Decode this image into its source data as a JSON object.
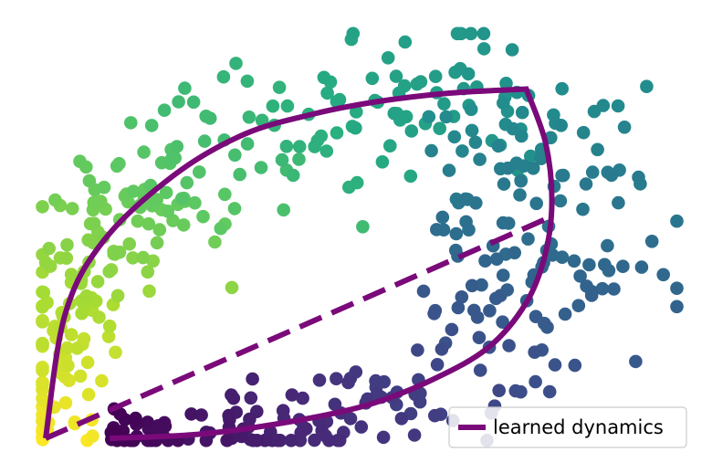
{
  "chart_data": {
    "type": "scatter",
    "title": "",
    "xlabel": "",
    "ylabel": "",
    "axes_visible": false,
    "grid": false,
    "xlim": [
      0,
      1
    ],
    "ylim": [
      0,
      1
    ],
    "colormap": "viridis",
    "point_color_encoding": "viridis colour varies along the loop: yellow at left, green at upper right, teal/blue at lower middle, dark purple at bottom left",
    "point_count": 520,
    "series": [
      {
        "name": "learned dynamics",
        "type": "line",
        "color": "#7a0a7a",
        "upper_curve": [
          [
            0.0,
            0.0
          ],
          [
            0.03,
            0.3
          ],
          [
            0.09,
            0.48
          ],
          [
            0.2,
            0.64
          ],
          [
            0.31,
            0.74
          ],
          [
            0.42,
            0.79
          ],
          [
            0.52,
            0.82
          ],
          [
            0.63,
            0.84
          ],
          [
            0.75,
            0.85
          ]
        ],
        "right_curve": [
          [
            0.75,
            0.85
          ],
          [
            0.78,
            0.72
          ],
          [
            0.79,
            0.58
          ],
          [
            0.78,
            0.45
          ],
          [
            0.75,
            0.33
          ],
          [
            0.69,
            0.22
          ],
          [
            0.6,
            0.14
          ],
          [
            0.5,
            0.08
          ],
          [
            0.38,
            0.04
          ],
          [
            0.24,
            0.01
          ],
          [
            0.1,
            0.0
          ]
        ],
        "dashed_chord": [
          [
            0.0,
            0.0
          ],
          [
            0.79,
            0.54
          ]
        ]
      }
    ],
    "legend": {
      "entries": [
        "learned dynamics"
      ],
      "placement": "bottom-right"
    }
  }
}
